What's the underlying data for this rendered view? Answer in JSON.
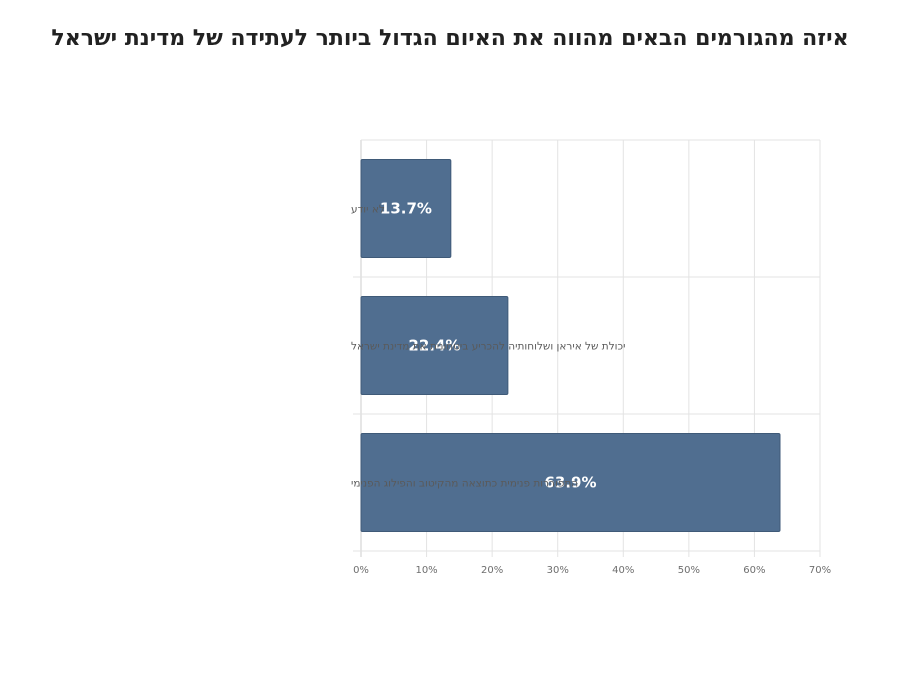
{
  "chart_data": {
    "type": "bar",
    "orientation": "horizontal",
    "title": "איזה מהגורמים הבאים מהווה את האיום הגדול ביותר לעתידה של מדינת ישראל",
    "categories": [
      "לא יודע",
      "יכולת של איראן ושלוחותיה להכריע ביטחונית את מדינת ישראל",
      "התפוררות פנימית כתוצאה מהקיטוב והפילוג הפנימי"
    ],
    "values": [
      13.7,
      22.4,
      63.9
    ],
    "data_labels": [
      "13.7%",
      "22.4%",
      "63.9%"
    ],
    "xlim": [
      0,
      70
    ],
    "x_ticks": [
      0,
      10,
      20,
      30,
      40,
      50,
      60,
      70
    ],
    "x_tick_labels": [
      "0%",
      "10%",
      "20%",
      "30%",
      "40%",
      "50%",
      "60%",
      "70%"
    ],
    "grid": true,
    "colors": {
      "bar": "#506e90",
      "bar_edge": "#3f5a78",
      "grid": "#e3e3e3",
      "axis": "#cccccc"
    }
  }
}
